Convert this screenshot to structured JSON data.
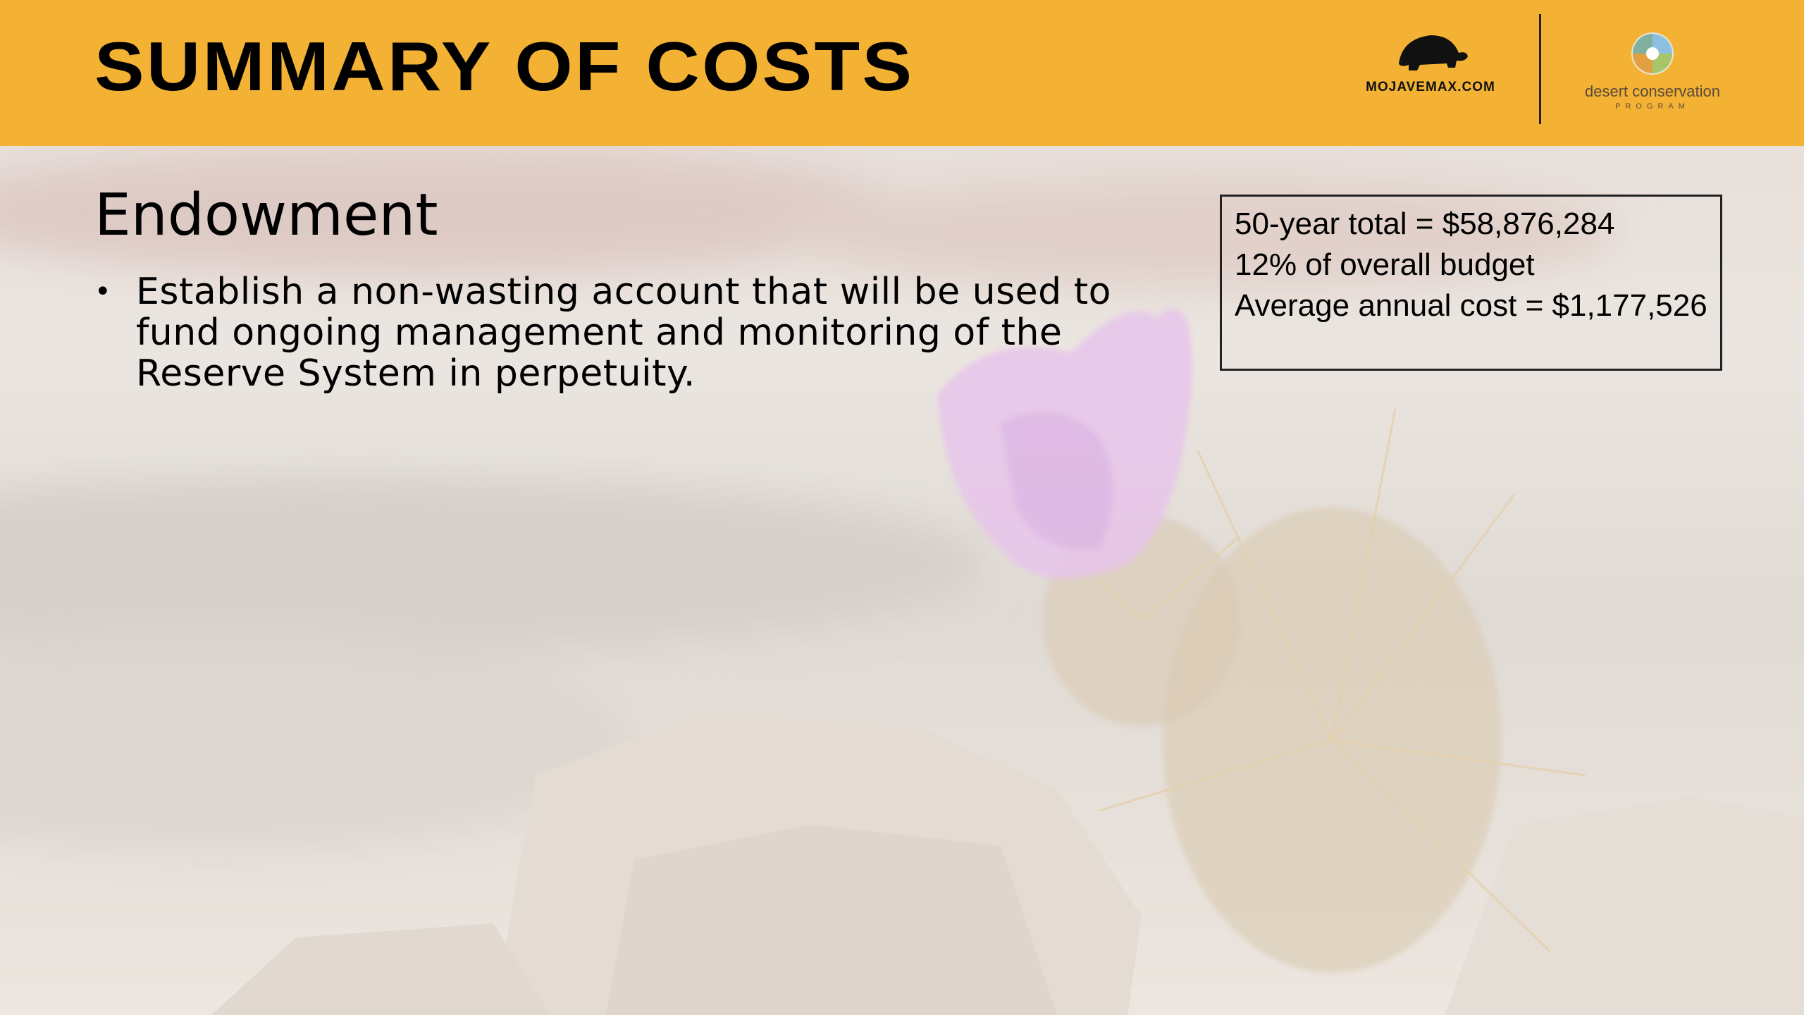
{
  "header": {
    "title": "SUMMARY OF COSTS",
    "logo_left": "MOJAVEMAX.COM",
    "logo_right": "desert conservation",
    "logo_right_sub": "PROGRAM"
  },
  "content": {
    "heading": "Endowment",
    "bullets": [
      "Establish a non-wasting account that will be used to fund  ongoing management and monitoring of the Reserve System in perpetuity."
    ]
  },
  "callout": {
    "lines": [
      "50-year total = $58,876,284",
      "12% of overall budget",
      "Average annual cost = $1,177,526"
    ]
  }
}
